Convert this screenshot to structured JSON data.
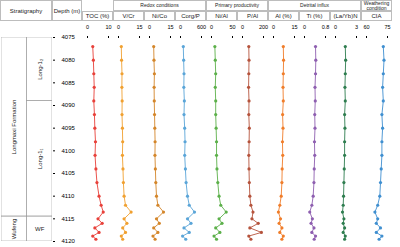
{
  "chart_data": [
    {
      "type": "line",
      "title": "TOC (%)",
      "color": "#e8413a",
      "marker": "circle",
      "xlim": [
        0,
        10
      ],
      "xticks": [
        0,
        10
      ],
      "y": [
        4077,
        4080,
        4083,
        4086,
        4089,
        4092,
        4095,
        4098,
        4101,
        4104,
        4107,
        4110,
        4112,
        4113.5,
        4115,
        4116,
        4117,
        4118,
        4118.8,
        4119.5
      ],
      "values": [
        2.5,
        2.8,
        3.0,
        3.2,
        3.0,
        3.3,
        3.5,
        3.8,
        3.6,
        4.0,
        4.5,
        5.5,
        6.5,
        7.5,
        5.0,
        7.0,
        3.5,
        5.5,
        2.5,
        4.0
      ]
    },
    {
      "type": "line",
      "title": "V/Cr",
      "color": "#f0a030",
      "marker": "circle",
      "xlim": [
        0,
        15
      ],
      "xticks": [
        0,
        15
      ],
      "y": [
        4077,
        4080,
        4083,
        4086,
        4089,
        4092,
        4095,
        4098,
        4101,
        4104,
        4107,
        4110,
        4112,
        4113.5,
        4115,
        4116,
        4117,
        4118,
        4118.8,
        4119.5
      ],
      "values": [
        2.0,
        2.2,
        2.5,
        2.4,
        2.6,
        2.5,
        2.8,
        3.0,
        2.8,
        3.2,
        3.5,
        4.0,
        5.0,
        9.0,
        4.0,
        6.0,
        3.0,
        5.0,
        2.0,
        3.0
      ]
    },
    {
      "type": "line",
      "title": "Ni/Co",
      "color": "#d4862a",
      "marker": "circle",
      "xlim": [
        0,
        15
      ],
      "xticks": [
        0,
        15
      ],
      "y": [
        4077,
        4080,
        4083,
        4086,
        4089,
        4092,
        4095,
        4098,
        4101,
        4104,
        4107,
        4110,
        4112,
        4113.5,
        4115,
        4116,
        4117,
        4118,
        4118.8,
        4119.5
      ],
      "values": [
        3.0,
        3.2,
        3.5,
        3.3,
        3.4,
        3.6,
        3.8,
        4.0,
        3.9,
        4.2,
        4.5,
        5.0,
        6.0,
        10.0,
        5.0,
        7.0,
        3.0,
        6.0,
        2.5,
        4.0
      ]
    },
    {
      "type": "line",
      "title": "Corg/P",
      "color": "#5aa5d8",
      "marker": "circle",
      "xlim": [
        0,
        600
      ],
      "xticks": [
        0,
        600
      ],
      "y": [
        4077,
        4080,
        4083,
        4086,
        4089,
        4092,
        4095,
        4098,
        4101,
        4104,
        4107,
        4110,
        4112,
        4113.5,
        4115,
        4116,
        4117,
        4118,
        4118.8,
        4119.5
      ],
      "values": [
        80,
        90,
        100,
        95,
        110,
        100,
        120,
        130,
        120,
        140,
        160,
        200,
        250,
        400,
        200,
        300,
        100,
        250,
        60,
        150
      ]
    },
    {
      "type": "line",
      "title": "Ni/Al",
      "color": "#5cb04a",
      "marker": "circle",
      "xlim": [
        0,
        50
      ],
      "xticks": [
        0,
        50
      ],
      "y": [
        4077,
        4080,
        4083,
        4086,
        4089,
        4092,
        4095,
        4098,
        4101,
        4104,
        4107,
        4110,
        4112,
        4113.5,
        4115,
        4116,
        4117,
        4118,
        4118.8,
        4119.5
      ],
      "values": [
        8,
        9,
        10,
        9,
        10,
        10,
        11,
        12,
        12,
        13,
        15,
        18,
        22,
        35,
        18,
        25,
        10,
        20,
        6,
        12
      ]
    },
    {
      "type": "line",
      "title": "P/Al",
      "color": "#b5533c",
      "marker": "circle",
      "xlim": [
        0,
        200
      ],
      "xticks": [
        0,
        200
      ],
      "y": [
        4077,
        4080,
        4083,
        4086,
        4089,
        4092,
        4095,
        4098,
        4101,
        4104,
        4107,
        4110,
        4112,
        4113.5,
        4115,
        4116,
        4117,
        4118,
        4118.8,
        4119.5
      ],
      "values": [
        60,
        62,
        60,
        58,
        62,
        60,
        65,
        63,
        60,
        62,
        65,
        70,
        80,
        100,
        90,
        150,
        70,
        180,
        60,
        80
      ]
    },
    {
      "type": "line",
      "title": "Al (%)",
      "color": "#f07d2a",
      "marker": "circle",
      "xlim": [
        0,
        15
      ],
      "xticks": [
        0,
        15
      ],
      "y": [
        4077,
        4080,
        4083,
        4086,
        4089,
        4092,
        4095,
        4098,
        4101,
        4104,
        4107,
        4110,
        4112,
        4113.5,
        4115,
        4116,
        4117,
        4118,
        4118.8,
        4119.5
      ],
      "values": [
        7.0,
        7.2,
        7.0,
        6.8,
        7.0,
        6.5,
        6.8,
        6.4,
        6.6,
        6.2,
        6.0,
        5.5,
        4.5,
        3.5,
        5.0,
        4.0,
        6.0,
        4.5,
        7.0,
        6.0
      ]
    },
    {
      "type": "line",
      "title": "Ti (%)",
      "color": "#8e5fb0",
      "marker": "circle",
      "xlim": [
        0,
        0.8
      ],
      "xticks": [
        0,
        0.8
      ],
      "y": [
        4077,
        4080,
        4083,
        4086,
        4089,
        4092,
        4095,
        4098,
        4101,
        4104,
        4107,
        4110,
        4112,
        4113.5,
        4115,
        4116,
        4117,
        4118,
        4118.8,
        4119.5
      ],
      "values": [
        0.42,
        0.43,
        0.42,
        0.4,
        0.41,
        0.39,
        0.4,
        0.38,
        0.39,
        0.37,
        0.36,
        0.33,
        0.28,
        0.2,
        0.3,
        0.25,
        0.36,
        0.28,
        0.42,
        0.37
      ]
    },
    {
      "type": "line",
      "title": "(La/Yb)N",
      "color": "#2e7d4f",
      "marker": "circle",
      "xlim": [
        0,
        3
      ],
      "xticks": [
        0,
        3
      ],
      "y": [
        4077,
        4080,
        4083,
        4086,
        4089,
        4092,
        4095,
        4098,
        4101,
        4104,
        4107,
        4110,
        4112,
        4113.5,
        4115,
        4116,
        4117,
        4118,
        4118.8,
        4119.5
      ],
      "values": [
        1.4,
        1.45,
        1.4,
        1.35,
        1.4,
        1.3,
        1.35,
        1.3,
        1.3,
        1.25,
        1.2,
        1.15,
        1.1,
        1.0,
        1.2,
        1.1,
        1.3,
        1.1,
        1.4,
        1.3
      ]
    },
    {
      "type": "line",
      "title": "CIA",
      "color": "#3f8fd0",
      "marker": "circle",
      "xlim": [
        60,
        75
      ],
      "xticks": [
        60,
        75
      ],
      "y": [
        4077,
        4080,
        4083,
        4086,
        4089,
        4092,
        4095,
        4098,
        4101,
        4104,
        4107,
        4110,
        4112,
        4113.5,
        4115,
        4116,
        4117,
        4118,
        4118.8,
        4119.5
      ],
      "values": [
        72,
        72.5,
        72,
        71.5,
        72,
        71,
        71.5,
        71,
        71,
        70.5,
        70,
        69.5,
        68,
        66,
        68,
        67,
        70,
        67,
        71,
        69
      ]
    }
  ],
  "depth_axis": {
    "label": "Depth (m)",
    "ylim": [
      4075,
      4120
    ],
    "yticks": [
      4075,
      4080,
      4085,
      4090,
      4095,
      4100,
      4105,
      4110,
      4115,
      4120
    ]
  },
  "groups": [
    {
      "label": "Redox conditions",
      "panels": [
        "V/Cr",
        "Ni/Co",
        "Corg/P"
      ]
    },
    {
      "label": "Primary productivity",
      "panels": [
        "Ni/Al",
        "P/Al"
      ]
    },
    {
      "label": "Detrital influx",
      "panels": [
        "Al (%)",
        "Ti (%)",
        "(La/Yb)N"
      ]
    },
    {
      "label": "Weathering condition",
      "panels": [
        "CIA"
      ]
    }
  ],
  "stratigraphy": {
    "title": "Stratigraphy",
    "formations": [
      {
        "label": "Longmaxi Formation",
        "top": 4075,
        "base": 4114.5
      },
      {
        "label": "Wufeng",
        "top": 4114.5,
        "base": 4120
      }
    ],
    "members": [
      {
        "label": "Long-1₂",
        "top": 4075,
        "base": 4089
      },
      {
        "label": "Long-1₁",
        "top": 4089,
        "base": 4114.5
      },
      {
        "label": "WF",
        "top": 4114.5,
        "base": 4120
      }
    ]
  }
}
